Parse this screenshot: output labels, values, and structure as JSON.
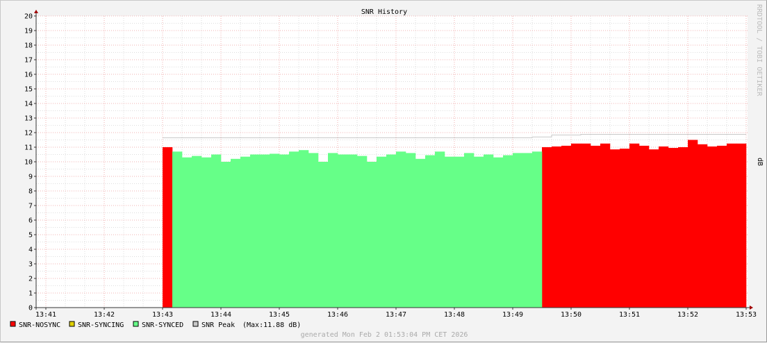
{
  "chart_data": {
    "type": "area",
    "title": "SNR History",
    "ylabel": "dB",
    "watermark": "RRDTOOL / TOBI OETIKER",
    "ylim": [
      0,
      20
    ],
    "yticks": [
      0,
      1,
      2,
      3,
      4,
      5,
      6,
      7,
      8,
      9,
      10,
      11,
      12,
      13,
      14,
      15,
      16,
      17,
      18,
      19,
      20
    ],
    "xlim": [
      "13:41",
      "13:53"
    ],
    "xticks": [
      "13:41",
      "13:42",
      "13:43",
      "13:44",
      "13:45",
      "13:46",
      "13:47",
      "13:48",
      "13:49",
      "13:50",
      "13:51",
      "13:52",
      "13:53"
    ],
    "grid": true,
    "legend_position": "bottom-left",
    "colors": {
      "SNR-NOSYNC": "#ff0000",
      "SNR-SYNCING": "#e0d000",
      "SNR-SYNCED": "#66ff88",
      "SNR Peak": "#c8c8c8"
    },
    "x": [
      "13:43:00",
      "13:43:10",
      "13:43:20",
      "13:43:30",
      "13:43:40",
      "13:43:50",
      "13:44:00",
      "13:44:10",
      "13:44:20",
      "13:44:30",
      "13:44:40",
      "13:44:50",
      "13:45:00",
      "13:45:10",
      "13:45:20",
      "13:45:30",
      "13:45:40",
      "13:45:50",
      "13:46:00",
      "13:46:10",
      "13:46:20",
      "13:46:30",
      "13:46:40",
      "13:46:50",
      "13:47:00",
      "13:47:10",
      "13:47:20",
      "13:47:30",
      "13:47:40",
      "13:47:50",
      "13:48:00",
      "13:48:10",
      "13:48:20",
      "13:48:30",
      "13:48:40",
      "13:48:50",
      "13:49:00",
      "13:49:10",
      "13:49:20",
      "13:49:30",
      "13:49:40",
      "13:49:50",
      "13:50:00",
      "13:50:10",
      "13:50:20",
      "13:50:30",
      "13:50:40",
      "13:50:50",
      "13:51:00",
      "13:51:10",
      "13:51:20",
      "13:51:30",
      "13:51:40",
      "13:51:50",
      "13:52:00",
      "13:52:10",
      "13:52:20",
      "13:52:30",
      "13:52:40",
      "13:52:50"
    ],
    "series": [
      {
        "name": "SNR-NOSYNC",
        "values": [
          11.0,
          null,
          null,
          null,
          null,
          null,
          null,
          null,
          null,
          null,
          null,
          null,
          null,
          null,
          null,
          null,
          null,
          null,
          null,
          null,
          null,
          null,
          null,
          null,
          null,
          null,
          null,
          null,
          null,
          null,
          null,
          null,
          null,
          null,
          null,
          null,
          null,
          null,
          null,
          11.0,
          11.05,
          11.1,
          11.25,
          11.25,
          11.1,
          11.25,
          10.85,
          10.9,
          11.25,
          11.1,
          10.85,
          11.05,
          10.95,
          11.0,
          11.5,
          11.2,
          11.05,
          11.1,
          11.25,
          11.25
        ]
      },
      {
        "name": "SNR-SYNCING",
        "values": [
          null,
          null,
          null,
          null,
          null,
          null,
          null,
          null,
          null,
          null,
          null,
          null,
          null,
          null,
          null,
          null,
          null,
          null,
          null,
          null,
          null,
          null,
          null,
          null,
          null,
          null,
          null,
          null,
          null,
          null,
          null,
          null,
          null,
          null,
          null,
          null,
          null,
          null,
          null,
          null,
          null,
          null,
          null,
          null,
          null,
          null,
          null,
          null,
          null,
          null,
          null,
          null,
          null,
          null,
          null,
          null,
          null,
          null,
          null,
          null
        ]
      },
      {
        "name": "SNR-SYNCED",
        "values": [
          null,
          10.7,
          10.3,
          10.4,
          10.3,
          10.5,
          10.0,
          10.2,
          10.35,
          10.5,
          10.5,
          10.55,
          10.5,
          10.7,
          10.8,
          10.6,
          10.0,
          10.6,
          10.5,
          10.5,
          10.4,
          10.0,
          10.35,
          10.5,
          10.7,
          10.6,
          10.2,
          10.45,
          10.7,
          10.35,
          10.35,
          10.6,
          10.35,
          10.5,
          10.3,
          10.45,
          10.6,
          10.6,
          10.7,
          null,
          null,
          null,
          null,
          null,
          null,
          null,
          null,
          null,
          null,
          null,
          null,
          null,
          null,
          null,
          null,
          null,
          null,
          null,
          null,
          null
        ]
      },
      {
        "name": "SNR Peak",
        "values": [
          11.65,
          11.65,
          11.65,
          11.65,
          11.65,
          11.65,
          11.65,
          11.65,
          11.65,
          11.65,
          11.65,
          11.65,
          11.65,
          11.65,
          11.65,
          11.65,
          11.65,
          11.65,
          11.65,
          11.65,
          11.65,
          11.65,
          11.65,
          11.65,
          11.65,
          11.65,
          11.65,
          11.65,
          11.65,
          11.65,
          11.65,
          11.65,
          11.65,
          11.65,
          11.65,
          11.65,
          11.65,
          11.65,
          11.7,
          11.7,
          11.84,
          11.84,
          11.84,
          11.88,
          11.88,
          11.88,
          11.88,
          11.88,
          11.88,
          11.88,
          11.88,
          11.88,
          11.88,
          11.88,
          11.88,
          11.88,
          11.88,
          11.88,
          11.88,
          11.88
        ]
      }
    ],
    "legend": [
      {
        "label": "SNR-NOSYNC"
      },
      {
        "label": "SNR-SYNCING"
      },
      {
        "label": "SNR-SYNCED"
      },
      {
        "label": "SNR Peak",
        "note": "(Max:11.88 dB)"
      }
    ],
    "footer": "generated Mon Feb  2 01:53:04 PM CET 2026"
  }
}
